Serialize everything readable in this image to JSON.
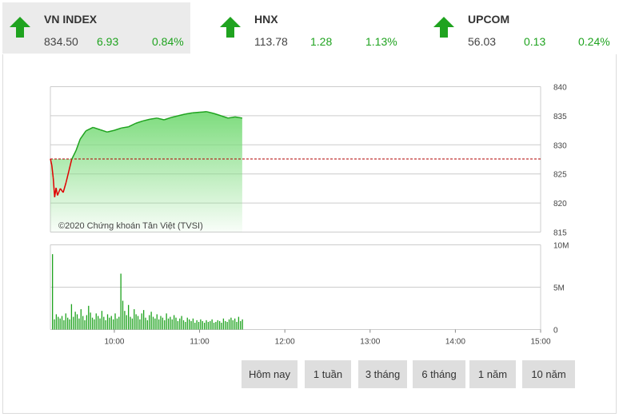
{
  "tabs": [
    {
      "name": "VN INDEX",
      "price": "834.50",
      "change": "6.93",
      "percent": "0.84%",
      "active": true
    },
    {
      "name": "HNX",
      "price": "113.78",
      "change": "1.28",
      "percent": "1.13%",
      "active": false
    },
    {
      "name": "UPCOM",
      "price": "56.03",
      "change": "0.13",
      "percent": "0.24%",
      "active": false
    }
  ],
  "colors": {
    "up": "#1fa31f",
    "down": "#e00000",
    "fill": "#8de38d",
    "grid": "#cccccc",
    "ref": "#b00000"
  },
  "watermark": "©2020 Chứng khoán Tân Việt (TVSI)",
  "buttons": [
    "Hôm nay",
    "1 tuần",
    "3 tháng",
    "6 tháng",
    "1 năm",
    "10 năm"
  ],
  "chart_data": [
    {
      "type": "line",
      "reference": 827.57,
      "ylim": [
        815,
        840
      ],
      "yticks": [
        "840",
        "835",
        "830",
        "825",
        "820",
        "815"
      ],
      "grid": true,
      "x": [
        "09:15",
        "09:16",
        "09:17",
        "09:18",
        "09:19",
        "09:20",
        "09:22",
        "09:24",
        "09:26",
        "09:28",
        "09:30",
        "09:33",
        "09:36",
        "09:40",
        "09:45",
        "09:50",
        "09:55",
        "10:00",
        "10:05",
        "10:10",
        "10:15",
        "10:20",
        "10:25",
        "10:30",
        "10:35",
        "10:40",
        "10:45",
        "10:50",
        "10:55",
        "11:00",
        "11:05",
        "11:10",
        "11:15",
        "11:20",
        "11:25",
        "11:30"
      ],
      "values": [
        827.6,
        826.5,
        824.3,
        821.0,
        822.6,
        821.3,
        822.5,
        821.8,
        823.5,
        825.5,
        827.5,
        829.0,
        831.0,
        832.4,
        833.0,
        832.6,
        832.2,
        832.5,
        832.9,
        833.1,
        833.7,
        834.1,
        834.4,
        834.6,
        834.3,
        834.7,
        835.0,
        835.3,
        835.5,
        835.6,
        835.7,
        835.4,
        835.0,
        834.6,
        834.8,
        834.6
      ]
    },
    {
      "type": "bar",
      "series": [
        {
          "name": "",
          "values": [
            8.9,
            1.2,
            1.8,
            1.5,
            1.3,
            1.6,
            1.1,
            1.9,
            1.4,
            1.2,
            3.0,
            1.5,
            2.1,
            1.8,
            1.3,
            2.4,
            1.6,
            1.1,
            1.7,
            2.8,
            2.0,
            1.4,
            1.2,
            1.9,
            1.6,
            1.3,
            2.2,
            1.5,
            1.1,
            1.8,
            1.4,
            1.6,
            1.2,
            1.9,
            1.3,
            1.5,
            6.6,
            3.4,
            2.2,
            1.7,
            2.9,
            1.5,
            1.3,
            2.4,
            1.8,
            1.6,
            1.2,
            1.9,
            2.3,
            1.4,
            1.1,
            1.7,
            2.1,
            1.5,
            1.3,
            1.8,
            1.2,
            1.6,
            1.4,
            1.1,
            1.9,
            1.3,
            1.5,
            1.2,
            1.7,
            1.4,
            1.0,
            1.3,
            1.6,
            1.1,
            0.9,
            1.4,
            1.2,
            1.0,
            1.3,
            0.8,
            1.1,
            0.9,
            1.2,
            1.0,
            0.8,
            1.1,
            0.9,
            1.0,
            1.2,
            0.8,
            0.9,
            1.1,
            1.0,
            0.8,
            1.3,
            1.0,
            0.9,
            1.2,
            1.4,
            1.1,
            1.3,
            0.9,
            1.5,
            1.0,
            1.2
          ]
        }
      ],
      "ylim": [
        0,
        10
      ],
      "yticks": [
        "10M",
        "5M",
        "0"
      ]
    }
  ],
  "xticks": [
    "10:00",
    "11:00",
    "12:00",
    "13:00",
    "14:00",
    "15:00"
  ]
}
